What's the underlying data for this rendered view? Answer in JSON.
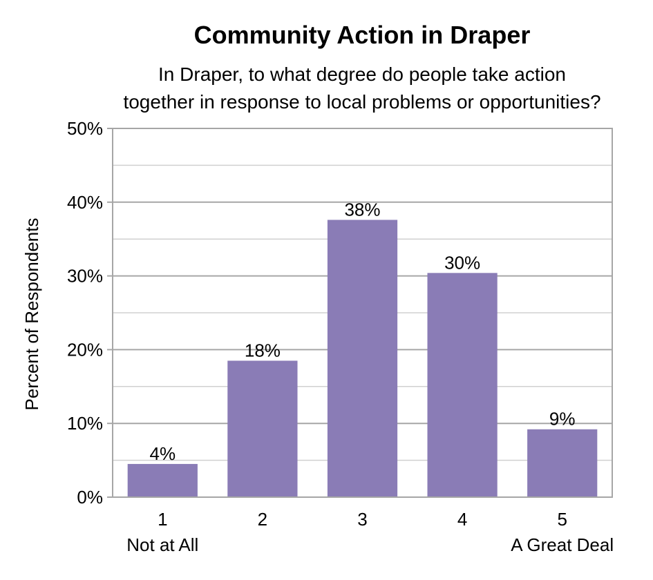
{
  "chart_data": {
    "type": "bar",
    "title": "Community Action in Draper",
    "subtitle_lines": [
      "In Draper, to what degree do people take action",
      "together in response to local problems or opportunities?"
    ],
    "ylabel": "Percent of Respondents",
    "xlabel": "",
    "ylim": [
      0,
      50
    ],
    "yticks": [
      0,
      10,
      20,
      30,
      40,
      50
    ],
    "ytick_labels": [
      "0%",
      "10%",
      "20%",
      "30%",
      "40%",
      "50%"
    ],
    "minor_gridlines": [
      5,
      15,
      25,
      35,
      45
    ],
    "grid": true,
    "categories": [
      "1",
      "2",
      "3",
      "4",
      "5"
    ],
    "category_sublabels": [
      "Not at All",
      "",
      "",
      "",
      "A Great Deal"
    ],
    "values": [
      4.5,
      18.5,
      37.6,
      30.4,
      9.2
    ],
    "data_labels": [
      "4%",
      "18%",
      "38%",
      "30%",
      "9%"
    ],
    "bar_color": "#8a7cb6",
    "grid_color": "#a6a6a6",
    "minor_grid_color": "#d0d0d0"
  }
}
